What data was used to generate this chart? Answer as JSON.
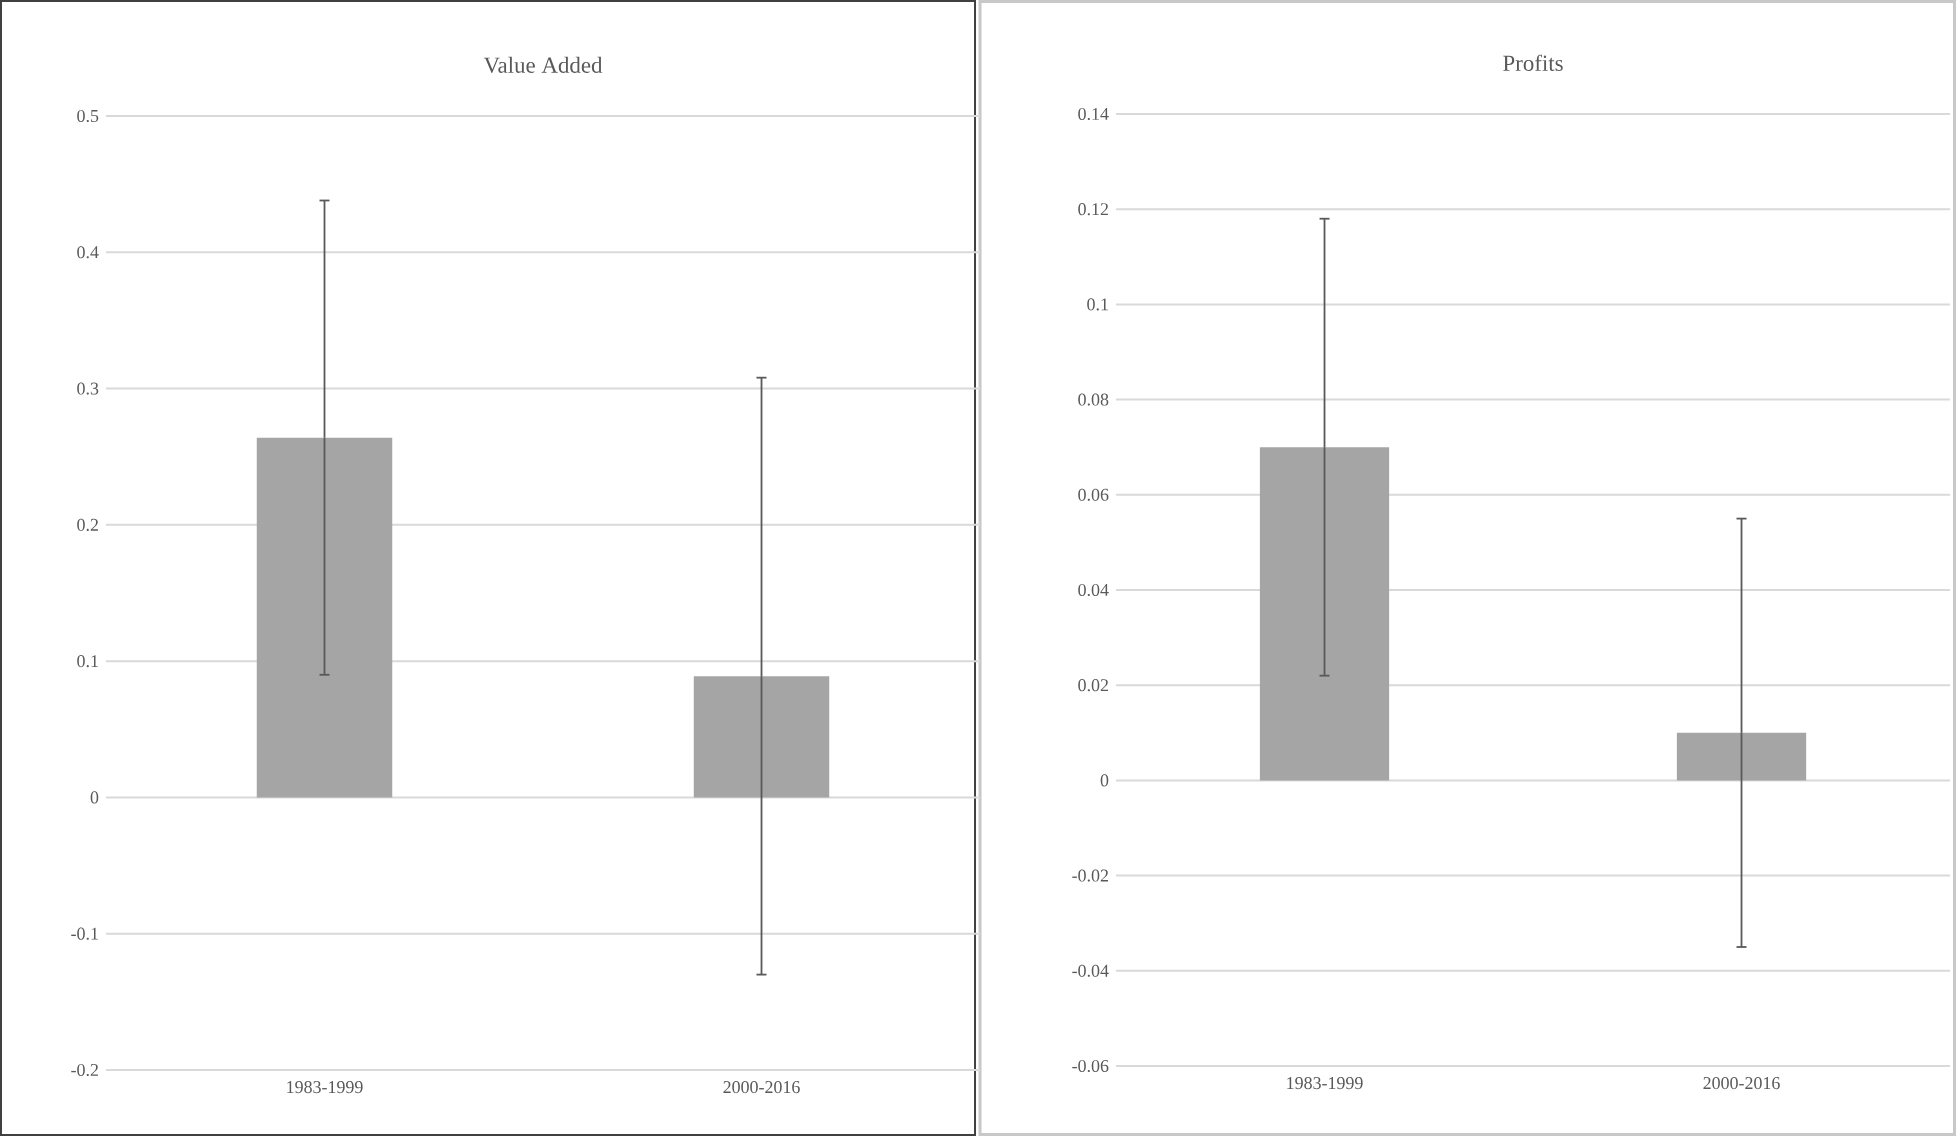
{
  "chart_data": [
    {
      "type": "bar",
      "title": "Value Added",
      "categories": [
        "1983-1999",
        "2000-2016"
      ],
      "values": [
        0.264,
        0.089
      ],
      "errors": [
        0.174,
        0.219
      ],
      "color": "#a5a5a5",
      "ylim": [
        -0.2,
        0.5
      ],
      "yticks": [
        -0.2,
        -0.1,
        0,
        0.1,
        0.2,
        0.3,
        0.4,
        0.5
      ],
      "grid": "y"
    },
    {
      "type": "bar",
      "title": "Profits",
      "categories": [
        "1983-1999",
        "2000-2016"
      ],
      "values": [
        0.07,
        0.01
      ],
      "errors": [
        0.048,
        0.045
      ],
      "color": "#a5a5a5",
      "ylim": [
        -0.06,
        0.14
      ],
      "yticks": [
        -0.06,
        -0.04,
        -0.02,
        0,
        0.02,
        0.04,
        0.06,
        0.08,
        0.1,
        0.12,
        0.14
      ],
      "grid": "y"
    }
  ]
}
